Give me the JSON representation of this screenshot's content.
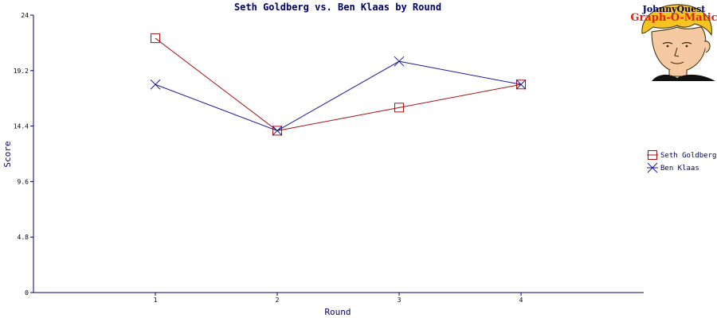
{
  "logo": {
    "line1": "JohnnyQuest",
    "line2": "Graph-O-Matic"
  },
  "chart_data": {
    "type": "line",
    "title": "Seth Goldberg vs. Ben Klaas by Round",
    "xlabel": "Round",
    "ylabel": "Score",
    "categories": [
      "1",
      "2",
      "3",
      "4"
    ],
    "ylim": [
      0,
      24
    ],
    "yticks": [
      "0",
      "4.8",
      "9.6",
      "14.4",
      "19.2",
      "24"
    ],
    "grid": false,
    "legend_position": "right",
    "series": [
      {
        "name": "Seth Goldberg",
        "values": [
          22,
          14,
          16,
          18
        ],
        "color": "#aa1111",
        "marker": "square"
      },
      {
        "name": "Ben Klaas",
        "values": [
          18,
          14,
          20,
          18
        ],
        "color": "#1a1a99",
        "marker": "x"
      }
    ],
    "axis_color": "#000066"
  }
}
